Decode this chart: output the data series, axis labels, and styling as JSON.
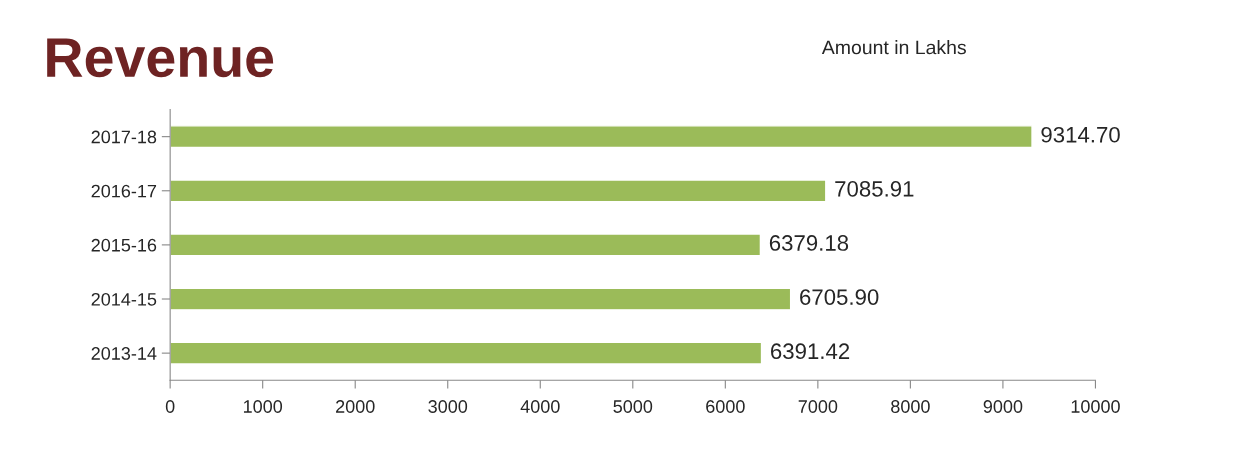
{
  "chart_data": {
    "type": "bar",
    "orientation": "horizontal",
    "title": "Revenue",
    "annotations": [
      "Amount in Lakhs"
    ],
    "categories": [
      "2017-18",
      "2016-17",
      "2015-16",
      "2014-15",
      "2013-14"
    ],
    "values": [
      9314.7,
      7085.91,
      6379.18,
      6705.9,
      6391.42
    ],
    "value_labels": [
      "9314.70",
      "7085.91",
      "6379.18",
      "6705.90",
      "6391.42"
    ],
    "color": "#9bbb59",
    "xlim": [
      0,
      10000
    ],
    "xticks": [
      0,
      1000,
      2000,
      3000,
      4000,
      5000,
      6000,
      7000,
      8000,
      9000,
      10000
    ],
    "grid": false,
    "legend": false
  }
}
